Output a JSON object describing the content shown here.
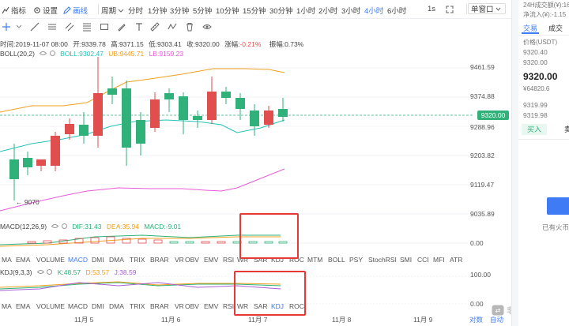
{
  "toolbar": {
    "indicators": "指标",
    "settings": "设置",
    "draw": "画线",
    "period": "周期",
    "intervals": [
      "分时",
      "1分钟",
      "3分钟",
      "5分钟",
      "10分钟",
      "15分钟",
      "30分钟",
      "1小时",
      "2小时",
      "3小时",
      "4小时",
      "6小时"
    ],
    "active_interval": "4小时",
    "right_interval": "1s",
    "window_mode": "单窗口"
  },
  "info": {
    "time": "时间:2019-11-07 08:00",
    "open": "开:9339.78",
    "high": "高:9371.15",
    "low": "低:9303.41",
    "close": "收:9320.00",
    "change": "涨幅:-0.21%",
    "amplitude": "振幅:0.73%"
  },
  "boll": {
    "label": "BOLL(20,2)",
    "boll": "BOLL:9302.47",
    "ub": "UB:9445.71",
    "lb": "LB:9159.23"
  },
  "price_axis": [
    "9461.59",
    "9374.88",
    "9288.96",
    "9203.82",
    "9119.47",
    "9035.89"
  ],
  "current_price_tag": "9320.00",
  "low_marker": "9070",
  "macd": {
    "label": "MACD(12,26,9)",
    "dif": "DIF:31.43",
    "dea": "DEA:35.94",
    "macd": "MACD:-9.01",
    "axis_zero": "0.00"
  },
  "kdj": {
    "label": "KDJ(9,3,3)",
    "k": "K:48.57",
    "d": "D:53.57",
    "j": "J:38.59",
    "axis_top": "100.00",
    "axis_bottom": "0.00"
  },
  "indicator_tabs": [
    "MA",
    "EMA",
    "VOLUME",
    "MACD",
    "DMI",
    "DMA",
    "TRIX",
    "BRAR",
    "VR",
    "OBV",
    "EMV",
    "RSI",
    "WR",
    "SAR",
    "KDJ",
    "ROC",
    "MTM",
    "BOLL",
    "PSY",
    "StochRSI",
    "SMI",
    "CCI",
    "MFI",
    "ATR"
  ],
  "indicator_tabs_kdj": [
    "MA",
    "EMA",
    "VOLUME",
    "MACD",
    "DMI",
    "DMA",
    "TRIX",
    "BRAR",
    "VR",
    "OBV",
    "EMV",
    "RSI",
    "WR",
    "SAR",
    "KDJ",
    "ROC"
  ],
  "dates": [
    "11月 5",
    "11月 6",
    "11月 7",
    "11月 8",
    "11月 9"
  ],
  "bottom_links": {
    "log": "对数",
    "auto": "自动"
  },
  "watermark": "非小号",
  "right_panel": {
    "vol_24h": "24H成交额(¥):16",
    "net_inflow": "净流入(¥):-1.15",
    "tab_trade": "交易",
    "tab_deals": "成交",
    "price_header": "价格(USDT)",
    "asks": [
      "9320.40",
      "9320.00"
    ],
    "last_price": "9320.00",
    "last_cny": "¥64820.6",
    "bids": [
      "9319.99",
      "9319.98"
    ],
    "buy_label": "买入",
    "sell_label": "卖",
    "has_trade": "已有火币"
  },
  "colors": {
    "up": "#e04e4e",
    "down": "#2fb179",
    "accent": "#3e7bf5",
    "highlight": "#e53935"
  }
}
